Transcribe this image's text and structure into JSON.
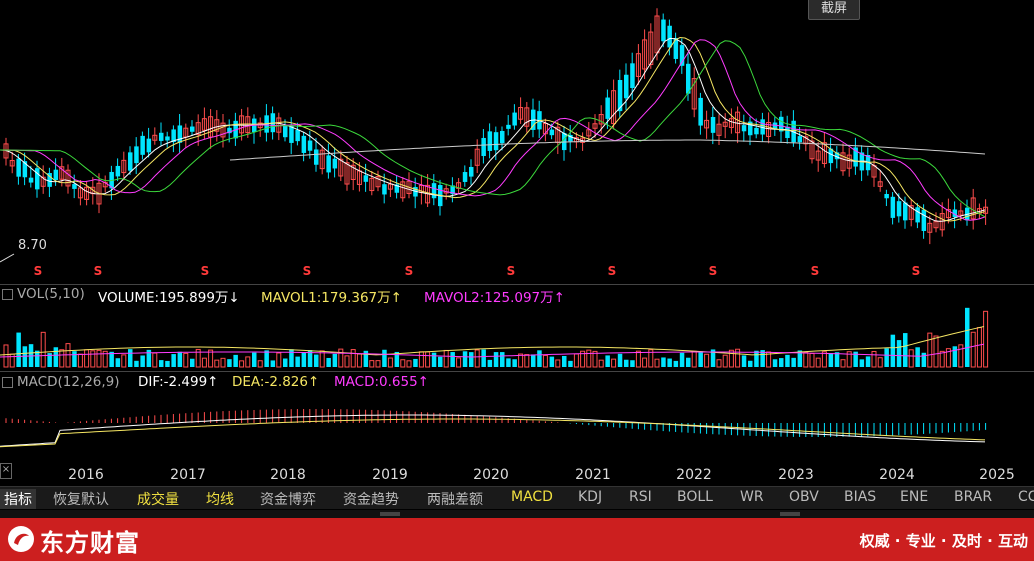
{
  "toolbar": {
    "screenshot_label": "截屏"
  },
  "price_chart": {
    "low_label": "8.70",
    "dividend_marker": "S"
  },
  "volume": {
    "name": "VOL(5,10)",
    "volume_label": "VOLUME:195.899万",
    "volume_arrow": "↓",
    "mavol1_label": "MAVOL1:179.367万",
    "mavol1_arrow": "↑",
    "mavol2_label": "MAVOL2:125.097万",
    "mavol2_arrow": "↑"
  },
  "macd": {
    "name": "MACD(12,26,9)",
    "dif_label": "DIF:-2.499",
    "dif_arrow": "↑",
    "dea_label": "DEA:-2.826",
    "dea_arrow": "↑",
    "macd_label": "MACD:0.655",
    "macd_arrow": "↑"
  },
  "x_axis": {
    "years": [
      "2016",
      "2017",
      "2018",
      "2019",
      "2020",
      "2021",
      "2022",
      "2023",
      "2024",
      "2025"
    ]
  },
  "tabs": [
    "指标",
    "恢复默认",
    "成交量",
    "均线",
    "资金博弈",
    "资金趋势",
    "两融差额",
    "MACD",
    "KDJ",
    "RSI",
    "BOLL",
    "WR",
    "OBV",
    "BIAS",
    "ENE",
    "BRAR",
    "CC"
  ],
  "footer": {
    "brand": "东方财富",
    "slogan": "权威 · 专业 · 及时 · 互动"
  },
  "colors": {
    "up": "#ff4d4d",
    "down": "#00e5ff",
    "ma5": "#ffffff",
    "ma10": "#f5e663",
    "ma20": "#ff3cff",
    "ma30": "#3cd93c",
    "ma60": "#cccccc",
    "brand_red": "#cc1f1f"
  }
}
